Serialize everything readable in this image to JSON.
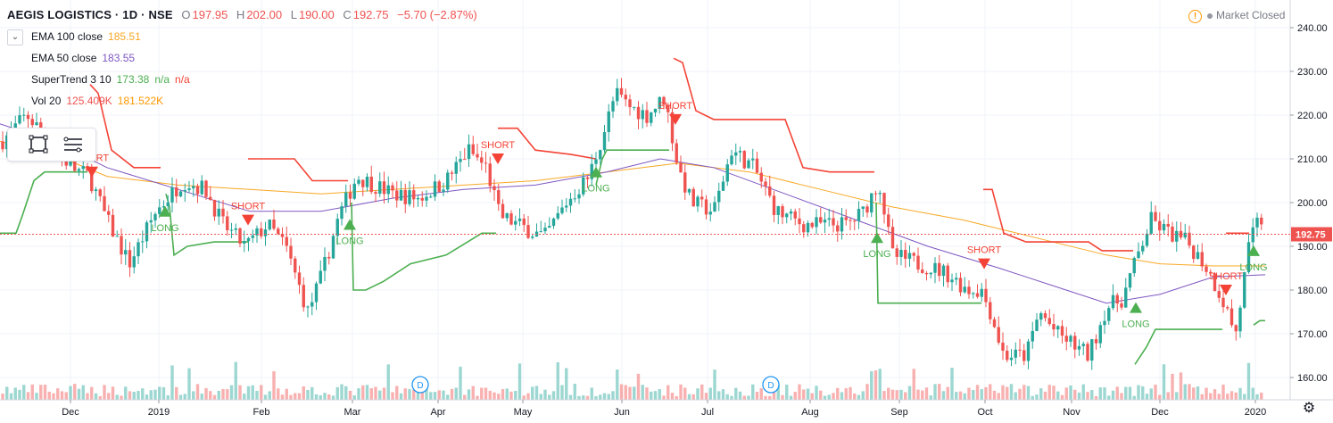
{
  "header": {
    "symbol": "AEGIS LOGISTICS · 1D · NSE",
    "open_label": "O",
    "open": "197.95",
    "high_label": "H",
    "high": "202.00",
    "low_label": "L",
    "low": "190.00",
    "close_label": "C",
    "close": "192.75",
    "change": "−5.70 (−2.87%)"
  },
  "status": {
    "market": "Market Closed"
  },
  "legend": {
    "ema100": {
      "label": "EMA 100 close",
      "value": "185.51",
      "color": "#f9a825"
    },
    "ema50": {
      "label": "EMA 50 close",
      "value": "183.55",
      "color": "#7e57c2"
    },
    "supertrend": {
      "label": "SuperTrend 3 10",
      "value": "173.38",
      "na1": "n/a",
      "na2": "n/a",
      "color_up": "#4caf50",
      "color_down": "#f44336"
    },
    "volume": {
      "label": "Vol 20",
      "value": "125.409K",
      "value2": "181.522K",
      "color": "#ff9800"
    }
  },
  "price_tag": "192.75",
  "icons": [
    "warning-icon",
    "rectangle-tool-icon",
    "lines-tool-icon",
    "settings-gear-icon",
    "chevron-down-icon"
  ],
  "chart_data": {
    "type": "candlestick",
    "title": "AEGIS LOGISTICS · 1D · NSE",
    "y_ticks": [
      "240.00",
      "230.00",
      "220.00",
      "210.00",
      "200.00",
      "190.00",
      "180.00",
      "170.00",
      "160.00"
    ],
    "ylim": [
      158,
      243
    ],
    "x_ticks": [
      "Dec",
      "2019",
      "Feb",
      "Mar",
      "Apr",
      "May",
      "Jun",
      "Jul",
      "Aug",
      "Sep",
      "Oct",
      "Nov",
      "Dec",
      "2020"
    ],
    "last_price": 192.75,
    "signals": [
      {
        "label": "SHORT",
        "direction": "down",
        "price": 207
      },
      {
        "label": "LONG",
        "direction": "up",
        "price": 198
      },
      {
        "label": "SHORT",
        "direction": "down",
        "price": 196
      },
      {
        "label": "LONG",
        "direction": "up",
        "price": 195
      },
      {
        "label": "SHORT",
        "direction": "down",
        "price": 210
      },
      {
        "label": "LONG",
        "direction": "up",
        "price": 207
      },
      {
        "label": "SHORT",
        "direction": "down",
        "price": 219
      },
      {
        "label": "LONG",
        "direction": "up",
        "price": 192
      },
      {
        "label": "SHORT",
        "direction": "down",
        "price": 186
      },
      {
        "label": "LONG",
        "direction": "up",
        "price": 176
      },
      {
        "label": "SHORT",
        "direction": "down",
        "price": 180
      },
      {
        "label": "LONG",
        "direction": "up",
        "price": 189
      }
    ],
    "dividends": [
      "D",
      "D"
    ],
    "grid": true
  }
}
